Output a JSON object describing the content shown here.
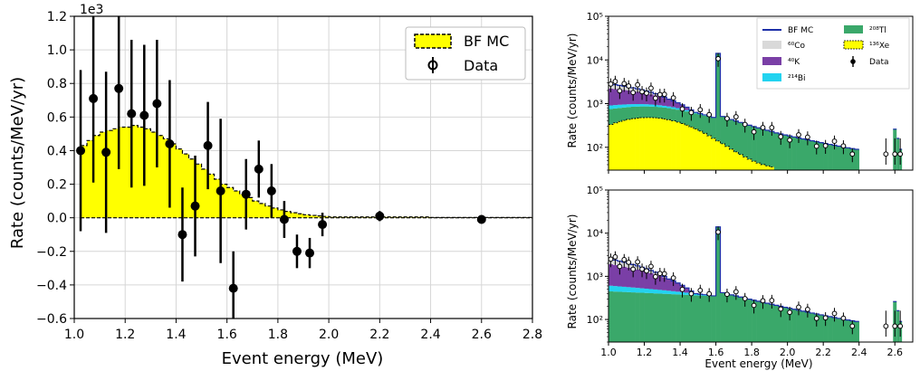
{
  "chart_data": [
    {
      "type": "bar",
      "style": "step histogram with error-bar data points",
      "xlabel": "Event energy (MeV)",
      "ylabel": "Rate (counts/MeV/yr)",
      "offset_text": "1e3",
      "xlim": [
        1.0,
        2.8
      ],
      "ylim": [
        -0.6,
        1.2
      ],
      "xticks": [
        "1.0",
        "1.2",
        "1.4",
        "1.6",
        "1.8",
        "2.0",
        "2.2",
        "2.4",
        "2.6",
        "2.8"
      ],
      "yticks": [
        "−0.6",
        "−0.4",
        "−0.2",
        "0.0",
        "0.2",
        "0.4",
        "0.6",
        "0.8",
        "1.0",
        "1.2"
      ],
      "grid": true,
      "legend_position": "top-right",
      "legend": [
        "BF MC",
        "Data"
      ],
      "colors": {
        "bf_mc_fill": "#ffff00",
        "bf_mc_edge": "#000000",
        "data": "#000000"
      },
      "bf_mc": {
        "bin_edges": [
          1.025,
          1.05,
          1.075,
          1.1,
          1.125,
          1.15,
          1.175,
          1.2,
          1.225,
          1.25,
          1.275,
          1.3,
          1.325,
          1.35,
          1.375,
          1.4,
          1.425,
          1.45,
          1.475,
          1.5,
          1.525,
          1.55,
          1.575,
          1.6,
          1.625,
          1.65,
          1.675,
          1.7,
          1.725,
          1.75,
          1.775,
          1.8,
          1.825,
          1.85,
          1.875,
          1.9,
          1.925,
          1.95,
          1.975,
          2.0,
          2.4,
          2.8
        ],
        "values": [
          0.43,
          0.46,
          0.49,
          0.51,
          0.52,
          0.53,
          0.54,
          0.54,
          0.55,
          0.54,
          0.53,
          0.51,
          0.49,
          0.47,
          0.44,
          0.41,
          0.38,
          0.35,
          0.32,
          0.29,
          0.26,
          0.23,
          0.2,
          0.18,
          0.16,
          0.14,
          0.12,
          0.1,
          0.085,
          0.07,
          0.058,
          0.047,
          0.038,
          0.03,
          0.024,
          0.018,
          0.014,
          0.011,
          0.008,
          0.005,
          0.002
        ]
      },
      "data_points": [
        {
          "x": 1.025,
          "y": 0.4,
          "err": 0.48
        },
        {
          "x": 1.075,
          "y": 0.71,
          "err": 0.5
        },
        {
          "x": 1.125,
          "y": 0.39,
          "err": 0.48
        },
        {
          "x": 1.175,
          "y": 0.77,
          "err": 0.48
        },
        {
          "x": 1.225,
          "y": 0.62,
          "err": 0.44
        },
        {
          "x": 1.275,
          "y": 0.61,
          "err": 0.42
        },
        {
          "x": 1.325,
          "y": 0.68,
          "err": 0.38
        },
        {
          "x": 1.375,
          "y": 0.44,
          "err": 0.38
        },
        {
          "x": 1.425,
          "y": -0.1,
          "err": 0.28
        },
        {
          "x": 1.475,
          "y": 0.07,
          "err": 0.3
        },
        {
          "x": 1.525,
          "y": 0.43,
          "err": 0.26
        },
        {
          "x": 1.575,
          "y": 0.16,
          "err": 0.43
        },
        {
          "x": 1.625,
          "y": -0.42,
          "err": 0.22
        },
        {
          "x": 1.675,
          "y": 0.14,
          "err": 0.21
        },
        {
          "x": 1.725,
          "y": 0.29,
          "err": 0.17
        },
        {
          "x": 1.775,
          "y": 0.16,
          "err": 0.16
        },
        {
          "x": 1.825,
          "y": -0.01,
          "err": 0.11
        },
        {
          "x": 1.875,
          "y": -0.2,
          "err": 0.1
        },
        {
          "x": 1.925,
          "y": -0.21,
          "err": 0.09
        },
        {
          "x": 1.975,
          "y": -0.04,
          "err": 0.07
        },
        {
          "x": 2.2,
          "y": 0.01,
          "err": 0.03
        },
        {
          "x": 2.6,
          "y": -0.01,
          "err": 0.01
        }
      ]
    },
    {
      "type": "bar",
      "style": "stacked step histogram, log y, with error-bar data points",
      "xlabel": "",
      "ylabel": "Rate (counts/MeV/yr)",
      "xlim": [
        1.0,
        2.7
      ],
      "ylim": [
        30,
        100000
      ],
      "yscale": "log",
      "xticks": [
        "1.0",
        "1.2",
        "1.4",
        "1.6",
        "1.8",
        "2.0",
        "2.2",
        "2.4",
        "2.6"
      ],
      "yticks": [
        "10²",
        "10³",
        "10⁴",
        "10⁵"
      ],
      "legend": [
        "BF MC",
        "⁶⁰Co",
        "⁴⁰K",
        "²¹⁴Bi",
        "²⁰⁸Tl",
        "¹³⁶Xe",
        "Data"
      ],
      "legend_colors": [
        "#1c2fa8",
        "#d9d9d9",
        "#7a3fa6",
        "#22d3f0",
        "#3aa86a",
        "#ffff00",
        "#000000"
      ]
    },
    {
      "type": "bar",
      "style": "stacked step histogram, log y, with error-bar data points",
      "xlabel": "Event energy (MeV)",
      "ylabel": "Rate (counts/MeV/yr)",
      "xlim": [
        1.0,
        2.7
      ],
      "ylim": [
        30,
        100000
      ],
      "yscale": "log",
      "xticks": [
        "1.0",
        "1.2",
        "1.4",
        "1.6",
        "1.8",
        "2.0",
        "2.2",
        "2.4",
        "2.6"
      ],
      "yticks": [
        "10²",
        "10³",
        "10⁴",
        "10⁵"
      ]
    }
  ]
}
